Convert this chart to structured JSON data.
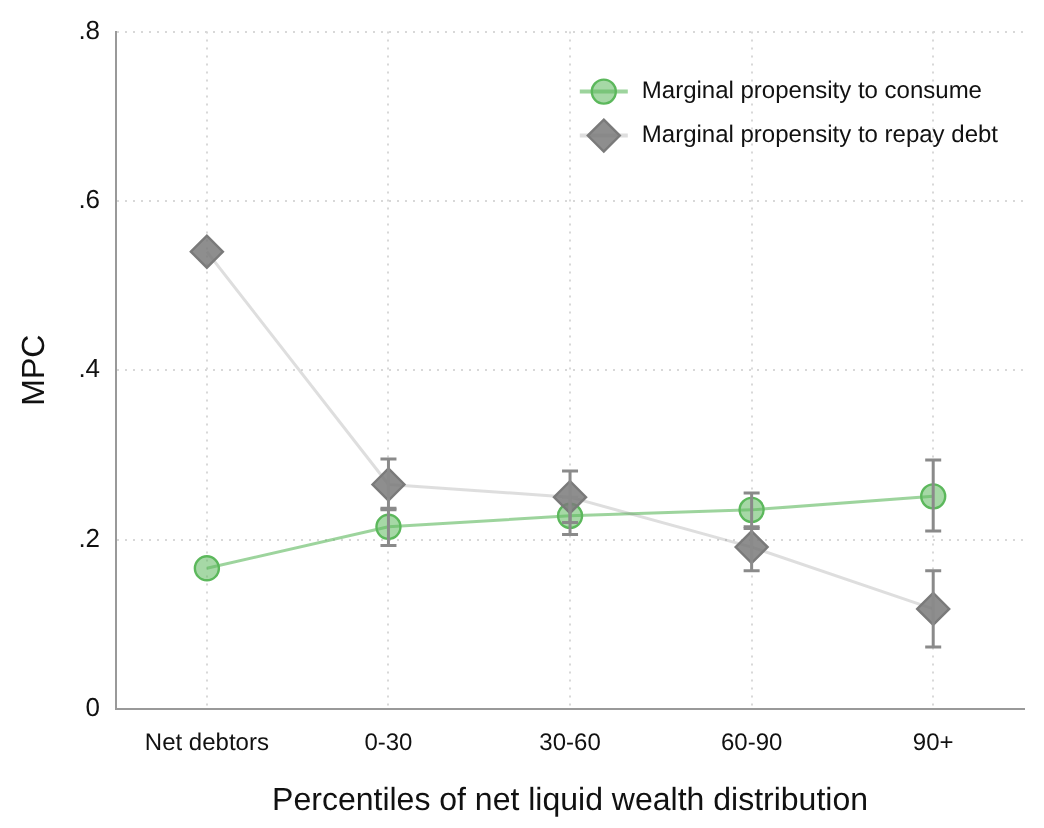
{
  "chart_data": {
    "type": "line",
    "xlabel": "Percentiles of net liquid wealth distribution",
    "ylabel": "MPC",
    "categories": [
      "Net debtors",
      "0-30",
      "30-60",
      "60-90",
      "90+"
    ],
    "series": [
      {
        "name": "Marginal propensity to consume",
        "color": "#5cb85c",
        "marker": "circle",
        "values": [
          0.166,
          0.215,
          0.228,
          0.235,
          0.251
        ],
        "errors": [
          null,
          [
            0.193,
            0.237
          ],
          [
            0.206,
            0.25
          ],
          [
            0.215,
            0.255
          ],
          [
            0.21,
            0.294
          ]
        ]
      },
      {
        "name": "Marginal propensity to repay debt",
        "color": "#7a7a7a",
        "marker": "diamond",
        "values": [
          0.54,
          0.265,
          0.25,
          0.191,
          0.118
        ],
        "errors": [
          null,
          [
            0.235,
            0.295
          ],
          [
            0.22,
            0.281
          ],
          [
            0.163,
            0.213
          ],
          [
            0.073,
            0.163
          ]
        ]
      }
    ],
    "ylim": [
      0,
      0.8
    ],
    "yticks": [
      0,
      {
        "value": 0.2,
        "label": ".2"
      },
      {
        "value": 0.4,
        "label": ".4"
      },
      {
        "value": 0.6,
        "label": ".6"
      },
      {
        "value": 0.8,
        "label": ".8"
      }
    ],
    "grid": true,
    "legend": "top right"
  }
}
